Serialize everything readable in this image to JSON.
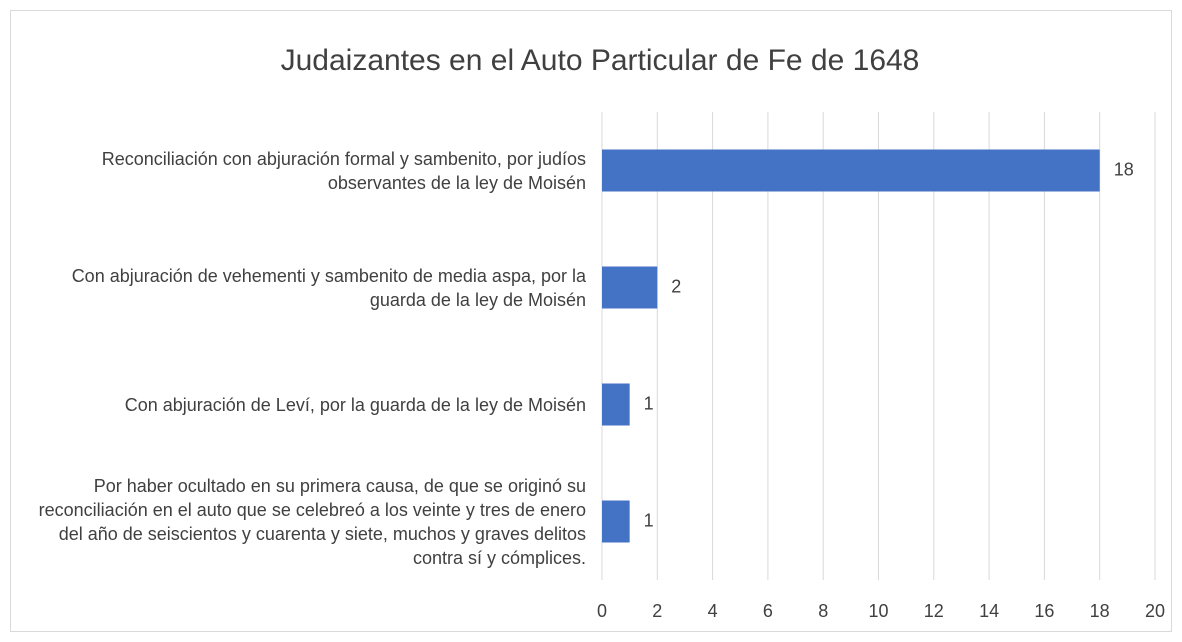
{
  "chart_data": {
    "type": "bar",
    "orientation": "horizontal",
    "title": "Judaizantes en el Auto Particular de Fe de 1648",
    "categories": [
      "Reconciliación con abjuración formal y sambenito, por judíos observantes de la ley de Moisén",
      "Con abjuración de vehementi y sambenito de media aspa, por la guarda de la ley de Moisén",
      "Con abjuración de Leví, por la guarda de la ley de Moisén",
      "Por haber ocultado en su primera causa, de que se originó su reconciliación en el auto que se celebreó a los veinte y tres de enero del año de seiscientos y cuarenta y siete, muchos y graves delitos contra sí y cómplices."
    ],
    "values": [
      18,
      2,
      1,
      1
    ],
    "color": "#4472c4",
    "xlim": [
      0,
      20
    ],
    "xticks": [
      0,
      2,
      4,
      6,
      8,
      10,
      12,
      14,
      16,
      18,
      20
    ],
    "grid": true
  }
}
